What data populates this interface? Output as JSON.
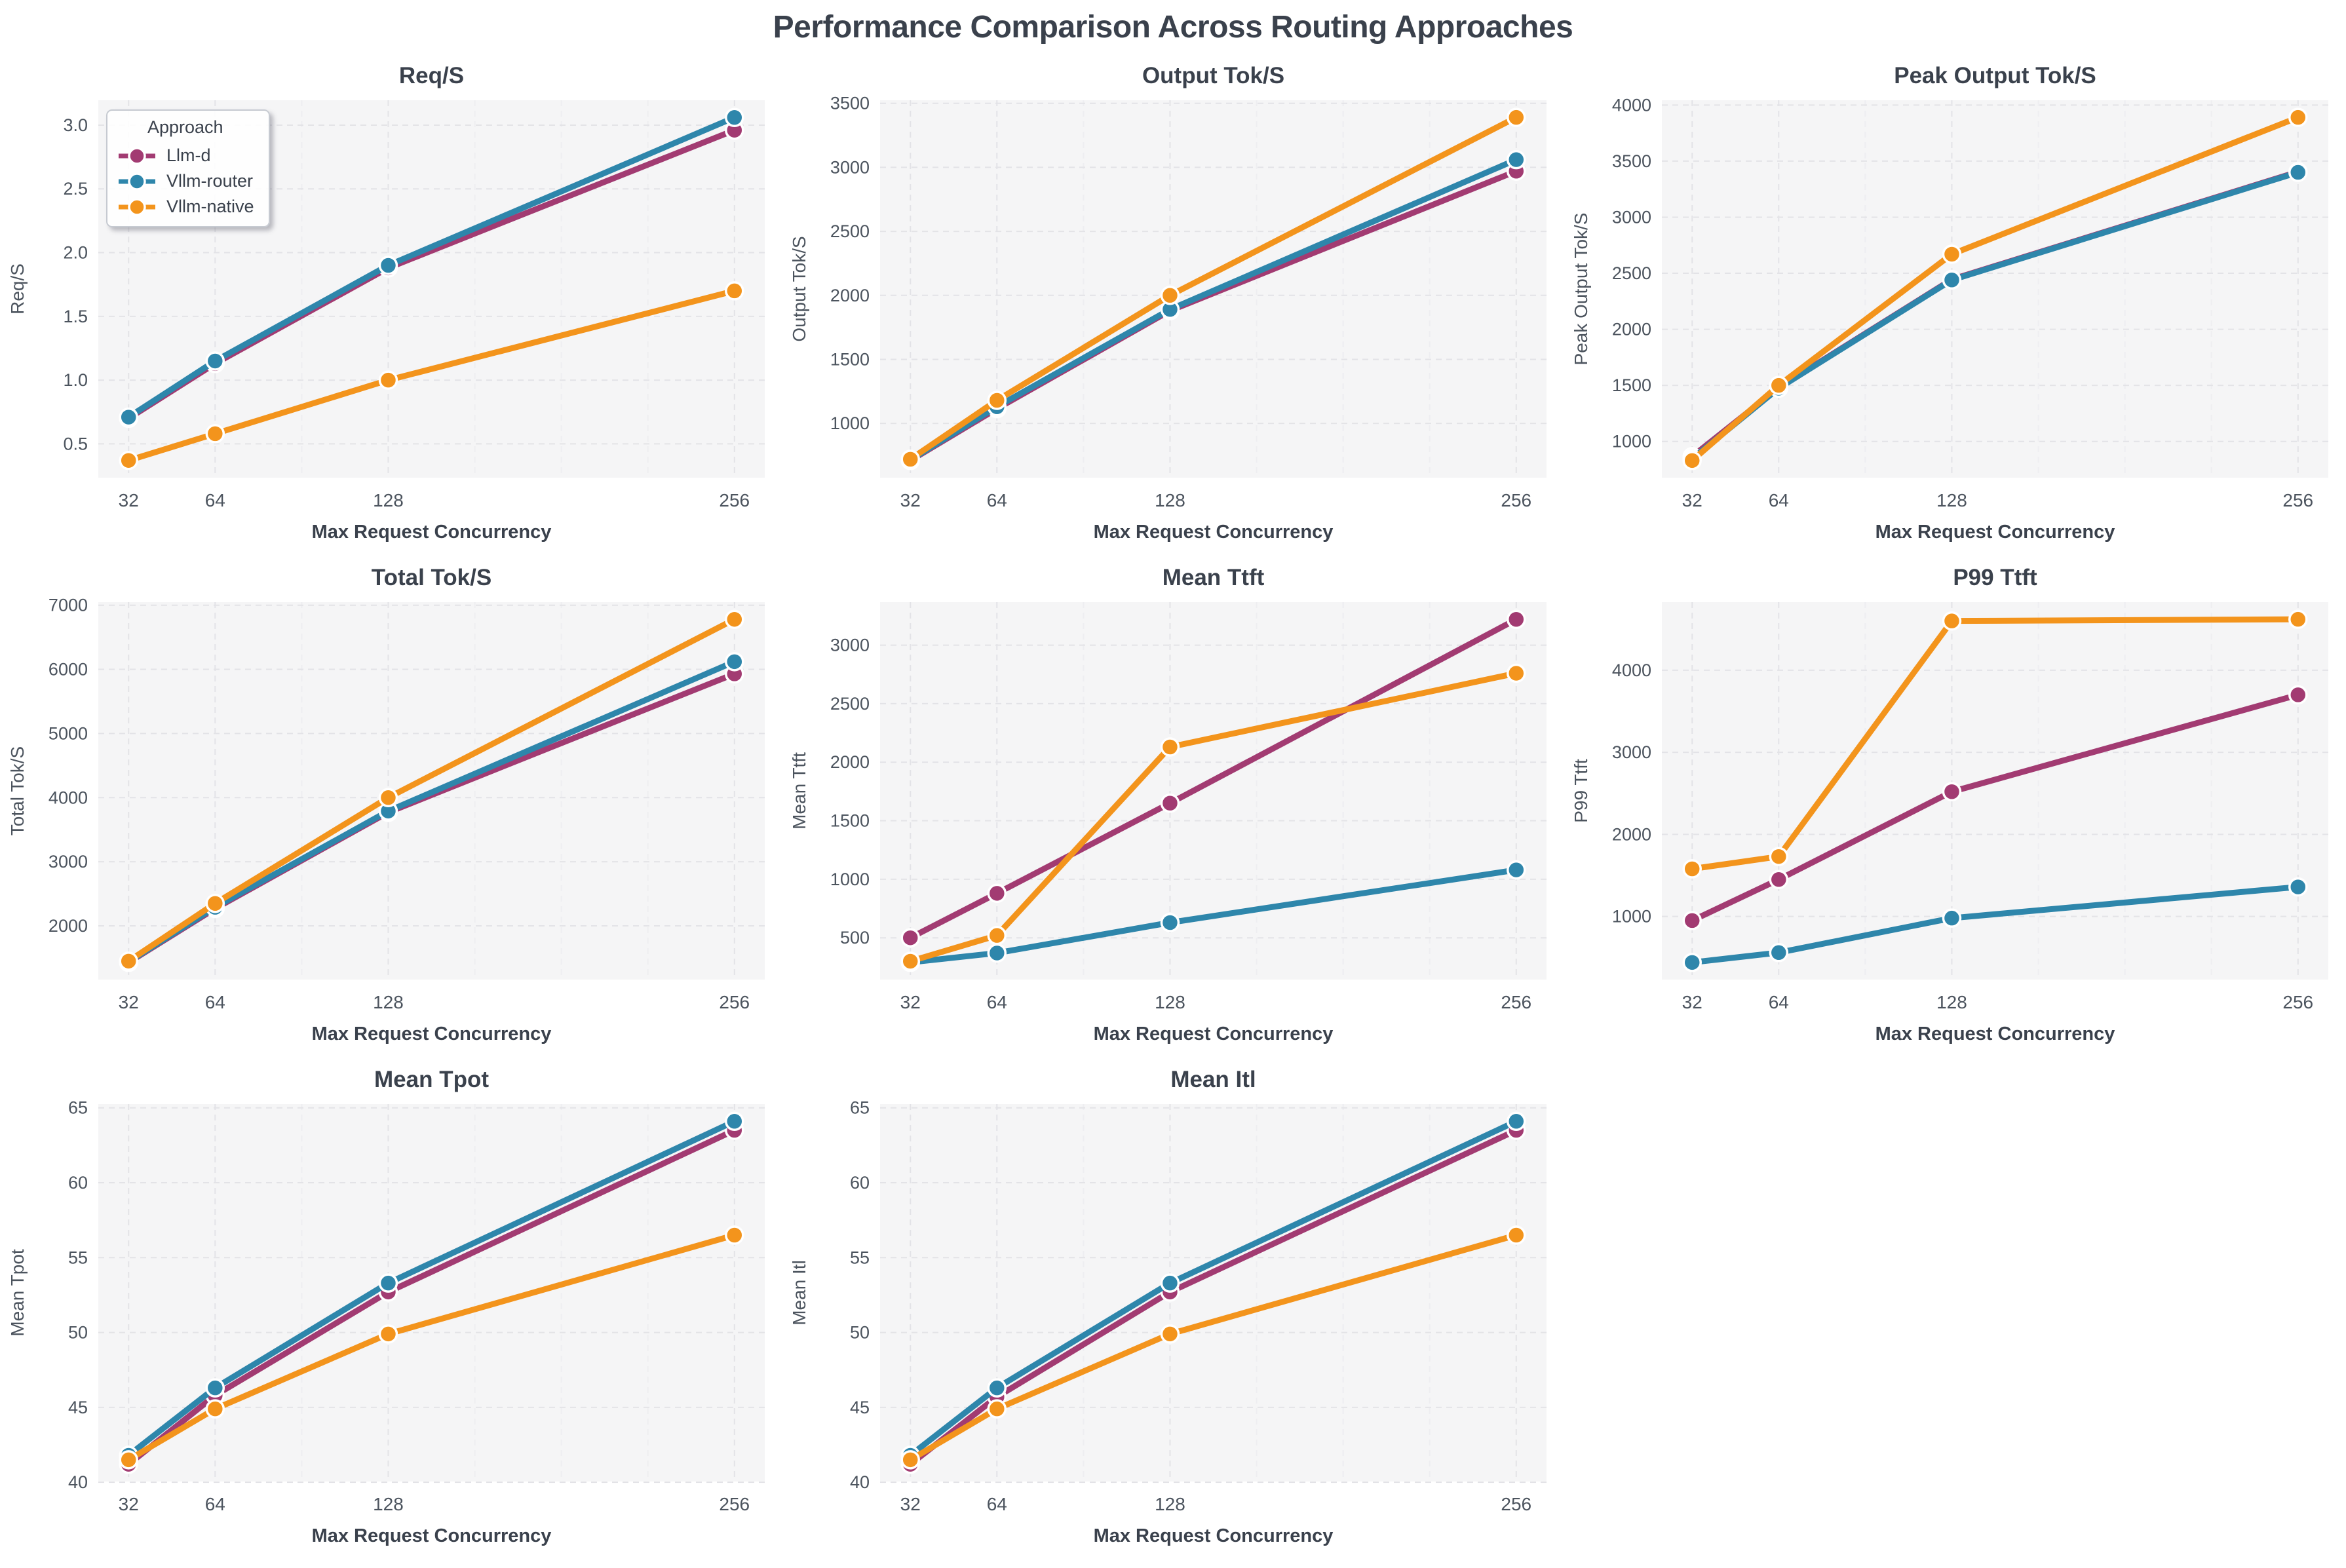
{
  "title": "Performance Comparison Across Routing Approaches",
  "legend": {
    "title": "Approach",
    "items": [
      {
        "label": "Llm-d",
        "color": "#A23B72"
      },
      {
        "label": "Vllm-router",
        "color": "#2E86AB"
      },
      {
        "label": "Vllm-native",
        "color": "#F3941C"
      }
    ]
  },
  "x_axis": {
    "label": "Max Request Concurrency",
    "ticks": [
      32,
      64,
      128,
      256
    ],
    "tick_labels": [
      "32",
      "64",
      "128",
      "256"
    ],
    "minor_ticks": [
      96,
      160,
      192,
      224
    ],
    "lim": [
      20.8,
      267.2
    ]
  },
  "chart_data": [
    {
      "type": "line",
      "title": "Req/S",
      "ylabel": "Req/S",
      "xlabel": "Max Request Concurrency",
      "x": [
        32,
        64,
        128,
        256
      ],
      "yticks": [
        0.5,
        1.0,
        1.5,
        2.0,
        2.5,
        3.0
      ],
      "ytick_labels": [
        "0.5",
        "1.0",
        "1.5",
        "2.0",
        "2.5",
        "3.0"
      ],
      "ylim": [
        0.235,
        3.195
      ],
      "grid": true,
      "legend_position": "upper-left",
      "show_legend": true,
      "series": [
        {
          "name": "Llm-d",
          "values": [
            0.7,
            1.13,
            1.88,
            2.96
          ]
        },
        {
          "name": "Vllm-router",
          "values": [
            0.71,
            1.15,
            1.9,
            3.06
          ]
        },
        {
          "name": "Vllm-native",
          "values": [
            0.37,
            0.58,
            1.0,
            1.7
          ]
        }
      ]
    },
    {
      "type": "line",
      "title": "Output Tok/S",
      "ylabel": "Output Tok/S",
      "xlabel": "Max Request Concurrency",
      "x": [
        32,
        64,
        128,
        256
      ],
      "yticks": [
        1000,
        1500,
        2000,
        2500,
        3000,
        3500
      ],
      "ytick_labels": [
        "1000",
        "1500",
        "2000",
        "2500",
        "3000",
        "3500"
      ],
      "ylim": [
        576,
        3524
      ],
      "grid": true,
      "show_legend": false,
      "series": [
        {
          "name": "Llm-d",
          "values": [
            710,
            1115,
            1880,
            2970
          ]
        },
        {
          "name": "Vllm-router",
          "values": [
            715,
            1130,
            1890,
            3060
          ]
        },
        {
          "name": "Vllm-native",
          "values": [
            720,
            1180,
            2000,
            3390
          ]
        }
      ]
    },
    {
      "type": "line",
      "title": "Peak Output Tok/S",
      "ylabel": "Peak Output Tok/S",
      "xlabel": "Max Request Concurrency",
      "x": [
        32,
        64,
        128,
        256
      ],
      "yticks": [
        1000,
        1500,
        2000,
        2500,
        3000,
        3500,
        4000
      ],
      "ytick_labels": [
        "1000",
        "1500",
        "2000",
        "2500",
        "3000",
        "3500",
        "4000"
      ],
      "ylim": [
        677,
        4043
      ],
      "grid": true,
      "show_legend": false,
      "series": [
        {
          "name": "Llm-d",
          "values": [
            865,
            1480,
            2445,
            3405
          ]
        },
        {
          "name": "Vllm-router",
          "values": [
            845,
            1475,
            2440,
            3400
          ]
        },
        {
          "name": "Vllm-native",
          "values": [
            830,
            1500,
            2670,
            3890
          ]
        }
      ]
    },
    {
      "type": "line",
      "title": "Total Tok/S",
      "ylabel": "Total Tok/S",
      "xlabel": "Max Request Concurrency",
      "x": [
        32,
        64,
        128,
        256
      ],
      "yticks": [
        2000,
        3000,
        4000,
        5000,
        6000,
        7000
      ],
      "ytick_labels": [
        "2000",
        "3000",
        "4000",
        "5000",
        "6000",
        "7000"
      ],
      "ylim": [
        1162,
        7048
      ],
      "grid": true,
      "show_legend": false,
      "series": [
        {
          "name": "Llm-d",
          "values": [
            1430,
            2270,
            3770,
            5930
          ]
        },
        {
          "name": "Vllm-router",
          "values": [
            1440,
            2290,
            3790,
            6120
          ]
        },
        {
          "name": "Vllm-native",
          "values": [
            1450,
            2350,
            4000,
            6780
          ]
        }
      ]
    },
    {
      "type": "line",
      "title": "Mean Ttft",
      "ylabel": "Mean Ttft",
      "xlabel": "Max Request Concurrency",
      "x": [
        32,
        64,
        128,
        256
      ],
      "yticks": [
        500,
        1000,
        1500,
        2000,
        2500,
        3000
      ],
      "ytick_labels": [
        "500",
        "1000",
        "1500",
        "2000",
        "2500",
        "3000"
      ],
      "ylim": [
        143,
        3367
      ],
      "grid": true,
      "show_legend": false,
      "series": [
        {
          "name": "Llm-d",
          "values": [
            500,
            880,
            1650,
            3220
          ]
        },
        {
          "name": "Vllm-router",
          "values": [
            290,
            370,
            630,
            1080
          ]
        },
        {
          "name": "Vllm-native",
          "values": [
            300,
            520,
            2130,
            2760
          ]
        }
      ]
    },
    {
      "type": "line",
      "title": "P99 Ttft",
      "ylabel": "P99 Ttft",
      "xlabel": "Max Request Concurrency",
      "x": [
        32,
        64,
        128,
        256
      ],
      "yticks": [
        1000,
        2000,
        3000,
        4000
      ],
      "ytick_labels": [
        "1000",
        "2000",
        "3000",
        "4000"
      ],
      "ylim": [
        231,
        4829
      ],
      "grid": true,
      "show_legend": false,
      "series": [
        {
          "name": "Llm-d",
          "values": [
            950,
            1450,
            2520,
            3700
          ]
        },
        {
          "name": "Vllm-router",
          "values": [
            440,
            560,
            980,
            1360
          ]
        },
        {
          "name": "Vllm-native",
          "values": [
            1580,
            1730,
            4600,
            4620
          ]
        }
      ]
    },
    {
      "type": "line",
      "title": "Mean Tpot",
      "ylabel": "Mean Tpot",
      "xlabel": "Max Request Concurrency",
      "x": [
        32,
        64,
        128,
        256
      ],
      "yticks": [
        40,
        45,
        50,
        55,
        60,
        65
      ],
      "ytick_labels": [
        "40",
        "45",
        "50",
        "55",
        "60",
        "65"
      ],
      "ylim": [
        40.05,
        65.25
      ],
      "grid": true,
      "show_legend": false,
      "series": [
        {
          "name": "Llm-d",
          "values": [
            41.2,
            45.8,
            52.7,
            63.5
          ]
        },
        {
          "name": "Vllm-router",
          "values": [
            41.8,
            46.3,
            53.3,
            64.1
          ]
        },
        {
          "name": "Vllm-native",
          "values": [
            41.5,
            44.9,
            49.9,
            56.5
          ]
        }
      ]
    },
    {
      "type": "line",
      "title": "Mean Itl",
      "ylabel": "Mean Itl",
      "xlabel": "Max Request Concurrency",
      "x": [
        32,
        64,
        128,
        256
      ],
      "yticks": [
        40,
        45,
        50,
        55,
        60,
        65
      ],
      "ytick_labels": [
        "40",
        "45",
        "50",
        "55",
        "60",
        "65"
      ],
      "ylim": [
        40.05,
        65.25
      ],
      "grid": true,
      "show_legend": false,
      "series": [
        {
          "name": "Llm-d",
          "values": [
            41.2,
            45.7,
            52.7,
            63.5
          ]
        },
        {
          "name": "Vllm-router",
          "values": [
            41.8,
            46.3,
            53.3,
            64.1
          ]
        },
        {
          "name": "Vllm-native",
          "values": [
            41.5,
            44.9,
            49.9,
            56.5
          ]
        }
      ]
    }
  ]
}
